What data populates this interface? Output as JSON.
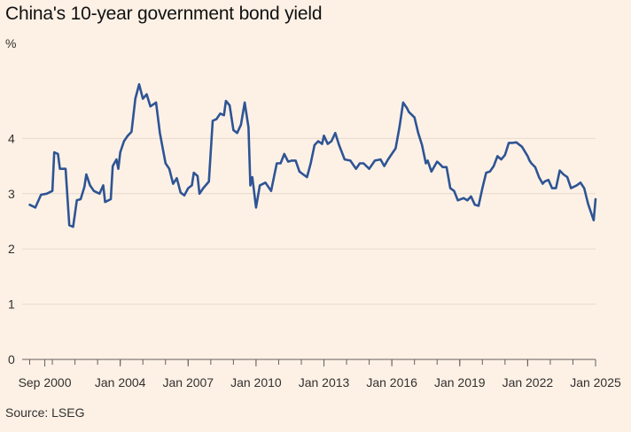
{
  "chart_data": {
    "type": "line",
    "title": "China's 10-year government bond yield",
    "ylabel": "%",
    "source": "Source: LSEG",
    "colors": {
      "line": "#2e5494",
      "grid": "#e6d9ce",
      "axis": "#66605c",
      "background": "#fdf1e6"
    },
    "ylim": [
      0,
      5
    ],
    "yticks": [
      "0",
      "1",
      "2",
      "3",
      "4"
    ],
    "xlim": [
      "1999-09",
      "2025-01"
    ],
    "xticks": [
      {
        "date": "2000-09",
        "label": "Sep 2000"
      },
      {
        "date": "2004-01",
        "label": "Jan 2004"
      },
      {
        "date": "2007-01",
        "label": "Jan 2007"
      },
      {
        "date": "2010-01",
        "label": "Jan 2010"
      },
      {
        "date": "2013-01",
        "label": "Jan 2013"
      },
      {
        "date": "2016-01",
        "label": "Jan 2016"
      },
      {
        "date": "2019-01",
        "label": "Jan 2019"
      },
      {
        "date": "2022-01",
        "label": "Jan 2022"
      },
      {
        "date": "2025-01",
        "label": "Jan 2025"
      }
    ],
    "grid": true,
    "legend": "none",
    "series": [
      {
        "points": [
          [
            "2000-01",
            2.8
          ],
          [
            "2000-04",
            2.75
          ],
          [
            "2000-07",
            2.98
          ],
          [
            "2000-10",
            3.0
          ],
          [
            "2001-01",
            3.05
          ],
          [
            "2001-02",
            3.75
          ],
          [
            "2001-04",
            3.72
          ],
          [
            "2001-05",
            3.45
          ],
          [
            "2001-08",
            3.45
          ],
          [
            "2001-10",
            2.43
          ],
          [
            "2001-12",
            2.4
          ],
          [
            "2002-02",
            2.88
          ],
          [
            "2002-04",
            2.9
          ],
          [
            "2002-06",
            3.12
          ],
          [
            "2002-07",
            3.35
          ],
          [
            "2002-09",
            3.15
          ],
          [
            "2002-11",
            3.05
          ],
          [
            "2003-02",
            3.0
          ],
          [
            "2003-04",
            3.15
          ],
          [
            "2003-05",
            2.85
          ],
          [
            "2003-08",
            2.9
          ],
          [
            "2003-09",
            3.5
          ],
          [
            "2003-11",
            3.62
          ],
          [
            "2003-12",
            3.45
          ],
          [
            "2004-01",
            3.75
          ],
          [
            "2004-03",
            3.95
          ],
          [
            "2004-05",
            4.05
          ],
          [
            "2004-07",
            4.12
          ],
          [
            "2004-09",
            4.72
          ],
          [
            "2004-11",
            4.98
          ],
          [
            "2005-01",
            4.72
          ],
          [
            "2005-03",
            4.8
          ],
          [
            "2005-05",
            4.58
          ],
          [
            "2005-08",
            4.65
          ],
          [
            "2005-10",
            4.1
          ],
          [
            "2006-01",
            3.55
          ],
          [
            "2006-03",
            3.45
          ],
          [
            "2006-05",
            3.18
          ],
          [
            "2006-07",
            3.28
          ],
          [
            "2006-09",
            3.02
          ],
          [
            "2006-11",
            2.97
          ],
          [
            "2007-01",
            3.1
          ],
          [
            "2007-03",
            3.15
          ],
          [
            "2007-04",
            3.38
          ],
          [
            "2007-06",
            3.32
          ],
          [
            "2007-07",
            3.0
          ],
          [
            "2007-09",
            3.1
          ],
          [
            "2007-12",
            3.22
          ],
          [
            "2008-02",
            4.32
          ],
          [
            "2008-04",
            4.35
          ],
          [
            "2008-06",
            4.45
          ],
          [
            "2008-08",
            4.42
          ],
          [
            "2008-09",
            4.68
          ],
          [
            "2008-11",
            4.6
          ],
          [
            "2009-01",
            4.15
          ],
          [
            "2009-03",
            4.1
          ],
          [
            "2009-05",
            4.25
          ],
          [
            "2009-07",
            4.65
          ],
          [
            "2009-09",
            4.2
          ],
          [
            "2009-10",
            3.15
          ],
          [
            "2009-11",
            3.3
          ],
          [
            "2010-01",
            2.75
          ],
          [
            "2010-03",
            3.15
          ],
          [
            "2010-06",
            3.2
          ],
          [
            "2010-09",
            3.05
          ],
          [
            "2010-12",
            3.55
          ],
          [
            "2011-02",
            3.55
          ],
          [
            "2011-04",
            3.72
          ],
          [
            "2011-06",
            3.58
          ],
          [
            "2011-08",
            3.6
          ],
          [
            "2011-10",
            3.6
          ],
          [
            "2011-12",
            3.4
          ],
          [
            "2012-02",
            3.35
          ],
          [
            "2012-04",
            3.3
          ],
          [
            "2012-06",
            3.55
          ],
          [
            "2012-08",
            3.88
          ],
          [
            "2012-10",
            3.95
          ],
          [
            "2012-12",
            3.9
          ],
          [
            "2013-01",
            4.05
          ],
          [
            "2013-03",
            3.9
          ],
          [
            "2013-05",
            3.95
          ],
          [
            "2013-07",
            4.1
          ],
          [
            "2013-09",
            3.88
          ],
          [
            "2013-12",
            3.62
          ],
          [
            "2014-03",
            3.6
          ],
          [
            "2014-06",
            3.45
          ],
          [
            "2014-08",
            3.55
          ],
          [
            "2014-10",
            3.55
          ],
          [
            "2015-01",
            3.45
          ],
          [
            "2015-04",
            3.6
          ],
          [
            "2015-07",
            3.62
          ],
          [
            "2015-09",
            3.5
          ],
          [
            "2015-11",
            3.62
          ],
          [
            "2016-01",
            3.72
          ],
          [
            "2016-03",
            3.82
          ],
          [
            "2016-05",
            4.2
          ],
          [
            "2016-07",
            4.65
          ],
          [
            "2016-09",
            4.55
          ],
          [
            "2016-10",
            4.48
          ],
          [
            "2017-01",
            4.38
          ],
          [
            "2017-03",
            4.1
          ],
          [
            "2017-05",
            3.88
          ],
          [
            "2017-07",
            3.55
          ],
          [
            "2017-08",
            3.6
          ],
          [
            "2017-10",
            3.4
          ],
          [
            "2018-01",
            3.58
          ],
          [
            "2018-02",
            3.55
          ],
          [
            "2018-04",
            3.48
          ],
          [
            "2018-06",
            3.48
          ],
          [
            "2018-08",
            3.1
          ],
          [
            "2018-10",
            3.05
          ],
          [
            "2018-12",
            2.88
          ],
          [
            "2019-03",
            2.92
          ],
          [
            "2019-05",
            2.88
          ],
          [
            "2019-07",
            2.95
          ],
          [
            "2019-09",
            2.8
          ],
          [
            "2019-11",
            2.78
          ],
          [
            "2020-01",
            3.1
          ],
          [
            "2020-03",
            3.38
          ],
          [
            "2020-05",
            3.4
          ],
          [
            "2020-07",
            3.5
          ],
          [
            "2020-09",
            3.68
          ],
          [
            "2020-11",
            3.62
          ],
          [
            "2021-01",
            3.7
          ],
          [
            "2021-03",
            3.92
          ],
          [
            "2021-05",
            3.92
          ],
          [
            "2021-07",
            3.93
          ],
          [
            "2021-10",
            3.85
          ],
          [
            "2022-01",
            3.68
          ],
          [
            "2022-02",
            3.6
          ],
          [
            "2022-03",
            3.55
          ],
          [
            "2022-05",
            3.48
          ],
          [
            "2022-07",
            3.3
          ],
          [
            "2022-09",
            3.18
          ],
          [
            "2022-10",
            3.22
          ],
          [
            "2022-12",
            3.25
          ],
          [
            "2023-02",
            3.1
          ],
          [
            "2023-04",
            3.1
          ],
          [
            "2023-06",
            3.42
          ],
          [
            "2023-08",
            3.35
          ],
          [
            "2023-10",
            3.3
          ],
          [
            "2023-12",
            3.1
          ],
          [
            "2024-03",
            3.15
          ],
          [
            "2024-05",
            3.2
          ],
          [
            "2024-07",
            3.1
          ],
          [
            "2024-09",
            2.82
          ],
          [
            "2024-11",
            2.62
          ],
          [
            "2024-12",
            2.52
          ],
          [
            "2025-01",
            2.9
          ]
        ]
      }
    ]
  }
}
